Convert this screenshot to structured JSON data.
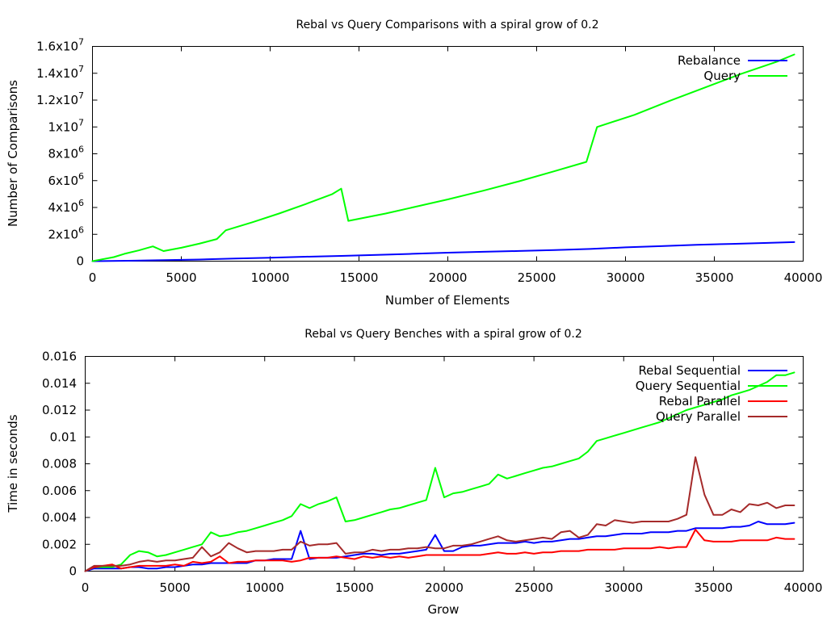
{
  "chart_data": [
    {
      "type": "line",
      "title": "Rebal vs Query Comparisons with a spiral grow of 0.2",
      "xlabel": "Number of Elements",
      "ylabel": "Number of Comparisons",
      "xlim": [
        0,
        40000
      ],
      "ylim": [
        0,
        16000000
      ],
      "xticks": [
        0,
        5000,
        10000,
        15000,
        20000,
        25000,
        30000,
        35000,
        40000
      ],
      "xtick_labels": [
        "0",
        "5000",
        "10000",
        "15000",
        "20000",
        "25000",
        "30000",
        "35000",
        "40000"
      ],
      "yticks": [
        0,
        2000000,
        4000000,
        6000000,
        8000000,
        10000000,
        12000000,
        14000000,
        16000000
      ],
      "ytick_labels": [
        {
          "m": "0",
          "e": ""
        },
        {
          "m": "2x10",
          "e": "6"
        },
        {
          "m": "4x10",
          "e": "6"
        },
        {
          "m": "6x10",
          "e": "6"
        },
        {
          "m": "8x10",
          "e": "6"
        },
        {
          "m": "1x10",
          "e": "7"
        },
        {
          "m": "1.2x10",
          "e": "7"
        },
        {
          "m": "1.4x10",
          "e": "7"
        },
        {
          "m": "1.6x10",
          "e": "7"
        }
      ],
      "grid": false,
      "legend": "top-right",
      "series": [
        {
          "name": "Rebalance",
          "color": "#0000ff",
          "x": [
            0,
            2000,
            4000,
            6000,
            8000,
            10000,
            12000,
            14000,
            16000,
            18000,
            20000,
            22000,
            24000,
            26000,
            28000,
            30000,
            32000,
            34000,
            36000,
            38000,
            39500
          ],
          "y": [
            0,
            30000,
            70000,
            120000,
            200000,
            260000,
            330000,
            390000,
            470000,
            550000,
            630000,
            700000,
            760000,
            830000,
            910000,
            1030000,
            1120000,
            1220000,
            1290000,
            1360000,
            1420000
          ]
        },
        {
          "name": "Query",
          "color": "#00ff00",
          "x": [
            0,
            400,
            1200,
            1800,
            2600,
            3400,
            4000,
            5000,
            6000,
            7000,
            7500,
            9000,
            10500,
            12000,
            13500,
            14000,
            14400,
            16500,
            18500,
            20000,
            22000,
            24000,
            26000,
            27800,
            28400,
            30500,
            32500,
            34500,
            36500,
            38500,
            39500
          ],
          "y": [
            0,
            100000,
            300000,
            550000,
            800000,
            1100000,
            750000,
            1000000,
            1300000,
            1650000,
            2300000,
            2900000,
            3550000,
            4250000,
            5000000,
            5400000,
            3000000,
            3550000,
            4150000,
            4600000,
            5250000,
            5950000,
            6700000,
            7400000,
            10000000,
            10900000,
            11950000,
            12950000,
            13950000,
            14850000,
            15400000
          ]
        }
      ]
    },
    {
      "type": "line",
      "title": "Rebal vs Query Benches with a spiral grow of 0.2",
      "xlabel": "Grow",
      "ylabel": "Time in seconds",
      "xlim": [
        0,
        40000
      ],
      "ylim": [
        0,
        0.016
      ],
      "xticks": [
        0,
        5000,
        10000,
        15000,
        20000,
        25000,
        30000,
        35000,
        40000
      ],
      "xtick_labels": [
        "0",
        "5000",
        "10000",
        "15000",
        "20000",
        "25000",
        "30000",
        "35000",
        "40000"
      ],
      "yticks": [
        0,
        0.002,
        0.004,
        0.006,
        0.008,
        0.01,
        0.012,
        0.014,
        0.016
      ],
      "ytick_labels": [
        "0",
        "0.002",
        "0.004",
        "0.006",
        "0.008",
        "0.01",
        "0.012",
        "0.014",
        "0.016"
      ],
      "grid": false,
      "legend": "top-right",
      "series": [
        {
          "name": "Rebal Sequential",
          "color": "#0000ff",
          "x": [
            0,
            500,
            1000,
            1500,
            2000,
            2500,
            3000,
            3500,
            4000,
            4500,
            5000,
            5500,
            6000,
            6500,
            7000,
            7500,
            8000,
            8500,
            9000,
            9500,
            10000,
            10500,
            11000,
            11500,
            12000,
            12500,
            13000,
            13500,
            14000,
            14500,
            15000,
            15500,
            16000,
            16500,
            17000,
            17500,
            18000,
            18500,
            19000,
            19500,
            20000,
            20500,
            21000,
            21500,
            22000,
            22500,
            23000,
            23500,
            24000,
            24500,
            25000,
            25500,
            26000,
            26500,
            27000,
            27500,
            28000,
            28500,
            29000,
            29500,
            30000,
            30500,
            31000,
            31500,
            32000,
            32500,
            33000,
            33500,
            34000,
            34500,
            35000,
            35500,
            36000,
            36500,
            37000,
            37500,
            38000,
            38500,
            39000,
            39500
          ],
          "y": [
            0,
            0.0002,
            0.0002,
            0.0002,
            0.0002,
            0.0003,
            0.0003,
            0.0002,
            0.0002,
            0.0003,
            0.0003,
            0.0004,
            0.0005,
            0.0005,
            0.0006,
            0.0006,
            0.0006,
            0.0006,
            0.0006,
            0.0008,
            0.0008,
            0.0009,
            0.0009,
            0.0009,
            0.003,
            0.0009,
            0.001,
            0.001,
            0.001,
            0.0011,
            0.0012,
            0.0013,
            0.0013,
            0.0012,
            0.0013,
            0.0013,
            0.0014,
            0.0015,
            0.0016,
            0.0027,
            0.0015,
            0.0015,
            0.0018,
            0.0019,
            0.0019,
            0.002,
            0.0021,
            0.0021,
            0.0021,
            0.0022,
            0.0021,
            0.0022,
            0.0022,
            0.0023,
            0.0024,
            0.0024,
            0.0025,
            0.0026,
            0.0026,
            0.0027,
            0.0028,
            0.0028,
            0.0028,
            0.0029,
            0.0029,
            0.0029,
            0.003,
            0.003,
            0.0032,
            0.0032,
            0.0032,
            0.0032,
            0.0033,
            0.0033,
            0.0034,
            0.0037,
            0.0035,
            0.0035,
            0.0035,
            0.0036
          ]
        },
        {
          "name": "Query Sequential",
          "color": "#00ff00",
          "x": [
            0,
            500,
            1000,
            1500,
            2000,
            2500,
            3000,
            3500,
            4000,
            4500,
            5000,
            5500,
            6000,
            6500,
            7000,
            7500,
            8000,
            8500,
            9000,
            9500,
            10000,
            10500,
            11000,
            11500,
            12000,
            12500,
            13000,
            13500,
            14000,
            14500,
            15000,
            15500,
            16000,
            16500,
            17000,
            17500,
            18000,
            18500,
            19000,
            19500,
            20000,
            20500,
            21000,
            21500,
            22000,
            22500,
            23000,
            23500,
            24000,
            24500,
            25000,
            25500,
            26000,
            26500,
            27000,
            27500,
            28000,
            28500,
            29000,
            29500,
            30000,
            30500,
            31000,
            31500,
            32000,
            32500,
            33000,
            33500,
            34000,
            34500,
            35000,
            35500,
            36000,
            36500,
            37000,
            37500,
            38000,
            38500,
            39000,
            39500
          ],
          "y": [
            0,
            0.0003,
            0.0003,
            0.0003,
            0.0005,
            0.0012,
            0.0015,
            0.0014,
            0.0011,
            0.0012,
            0.0014,
            0.0016,
            0.0018,
            0.002,
            0.0029,
            0.0026,
            0.0027,
            0.0029,
            0.003,
            0.0032,
            0.0034,
            0.0036,
            0.0038,
            0.0041,
            0.005,
            0.0047,
            0.005,
            0.0052,
            0.0055,
            0.0037,
            0.0038,
            0.004,
            0.0042,
            0.0044,
            0.0046,
            0.0047,
            0.0049,
            0.0051,
            0.0053,
            0.0077,
            0.0055,
            0.0058,
            0.0059,
            0.0061,
            0.0063,
            0.0065,
            0.0072,
            0.0069,
            0.0071,
            0.0073,
            0.0075,
            0.0077,
            0.0078,
            0.008,
            0.0082,
            0.0084,
            0.0089,
            0.0097,
            0.0099,
            0.0101,
            0.0103,
            0.0105,
            0.0107,
            0.0109,
            0.0111,
            0.0114,
            0.0117,
            0.012,
            0.0122,
            0.0124,
            0.0126,
            0.0128,
            0.0131,
            0.0133,
            0.0135,
            0.0138,
            0.0141,
            0.0146,
            0.0146,
            0.0148
          ]
        },
        {
          "name": "Rebal Parallel",
          "color": "#ff0000",
          "x": [
            0,
            500,
            1000,
            1500,
            2000,
            2500,
            3000,
            3500,
            4000,
            4500,
            5000,
            5500,
            6000,
            6500,
            7000,
            7500,
            8000,
            8500,
            9000,
            9500,
            10000,
            10500,
            11000,
            11500,
            12000,
            12500,
            13000,
            13500,
            14000,
            14500,
            15000,
            15500,
            16000,
            16500,
            17000,
            17500,
            18000,
            18500,
            19000,
            19500,
            20000,
            20500,
            21000,
            21500,
            22000,
            22500,
            23000,
            23500,
            24000,
            24500,
            25000,
            25500,
            26000,
            26500,
            27000,
            27500,
            28000,
            28500,
            29000,
            29500,
            30000,
            30500,
            31000,
            31500,
            32000,
            32500,
            33000,
            33500,
            34000,
            34500,
            35000,
            35500,
            36000,
            36500,
            37000,
            37500,
            38000,
            38500,
            39000,
            39500
          ],
          "y": [
            0,
            0.0003,
            0.0004,
            0.0005,
            0.0002,
            0.0003,
            0.0004,
            0.0004,
            0.0004,
            0.0004,
            0.0005,
            0.0004,
            0.0007,
            0.0006,
            0.0007,
            0.0011,
            0.0006,
            0.0007,
            0.0007,
            0.0008,
            0.0008,
            0.0008,
            0.0008,
            0.0007,
            0.0008,
            0.001,
            0.001,
            0.001,
            0.0011,
            0.001,
            0.0009,
            0.0011,
            0.001,
            0.0011,
            0.001,
            0.0011,
            0.001,
            0.0011,
            0.0012,
            0.0012,
            0.0012,
            0.0012,
            0.0012,
            0.0012,
            0.0012,
            0.0013,
            0.0014,
            0.0013,
            0.0013,
            0.0014,
            0.0013,
            0.0014,
            0.0014,
            0.0015,
            0.0015,
            0.0015,
            0.0016,
            0.0016,
            0.0016,
            0.0016,
            0.0017,
            0.0017,
            0.0017,
            0.0017,
            0.0018,
            0.0017,
            0.0018,
            0.0018,
            0.0031,
            0.0023,
            0.0022,
            0.0022,
            0.0022,
            0.0023,
            0.0023,
            0.0023,
            0.0023,
            0.0025,
            0.0024,
            0.0024
          ]
        },
        {
          "name": "Query Parallel",
          "color": "#a52a2a",
          "x": [
            0,
            500,
            1000,
            1500,
            2000,
            2500,
            3000,
            3500,
            4000,
            4500,
            5000,
            5500,
            6000,
            6500,
            7000,
            7500,
            8000,
            8500,
            9000,
            9500,
            10000,
            10500,
            11000,
            11500,
            12000,
            12500,
            13000,
            13500,
            14000,
            14500,
            15000,
            15500,
            16000,
            16500,
            17000,
            17500,
            18000,
            18500,
            19000,
            19500,
            20000,
            20500,
            21000,
            21500,
            22000,
            22500,
            23000,
            23500,
            24000,
            24500,
            25000,
            25500,
            26000,
            26500,
            27000,
            27500,
            28000,
            28500,
            29000,
            29500,
            30000,
            30500,
            31000,
            31500,
            32000,
            32500,
            33000,
            33500,
            34000,
            34500,
            35000,
            35500,
            36000,
            36500,
            37000,
            37500,
            38000,
            38500,
            39000,
            39500
          ],
          "y": [
            0,
            0.0004,
            0.0004,
            0.0004,
            0.0004,
            0.0005,
            0.0007,
            0.0008,
            0.0007,
            0.0008,
            0.0008,
            0.0009,
            0.001,
            0.0018,
            0.0011,
            0.0014,
            0.0021,
            0.0017,
            0.0014,
            0.0015,
            0.0015,
            0.0015,
            0.0016,
            0.0016,
            0.0022,
            0.0019,
            0.002,
            0.002,
            0.0021,
            0.0013,
            0.0014,
            0.0014,
            0.0016,
            0.0015,
            0.0016,
            0.0016,
            0.0017,
            0.0017,
            0.0018,
            0.0017,
            0.0017,
            0.0019,
            0.0019,
            0.002,
            0.0022,
            0.0024,
            0.0026,
            0.0023,
            0.0022,
            0.0023,
            0.0024,
            0.0025,
            0.0024,
            0.0029,
            0.003,
            0.0025,
            0.0027,
            0.0035,
            0.0034,
            0.0038,
            0.0037,
            0.0036,
            0.0037,
            0.0037,
            0.0037,
            0.0037,
            0.0039,
            0.0042,
            0.0085,
            0.0057,
            0.0042,
            0.0042,
            0.0046,
            0.0044,
            0.005,
            0.0049,
            0.0051,
            0.0047,
            0.0049,
            0.0049
          ]
        }
      ]
    }
  ]
}
